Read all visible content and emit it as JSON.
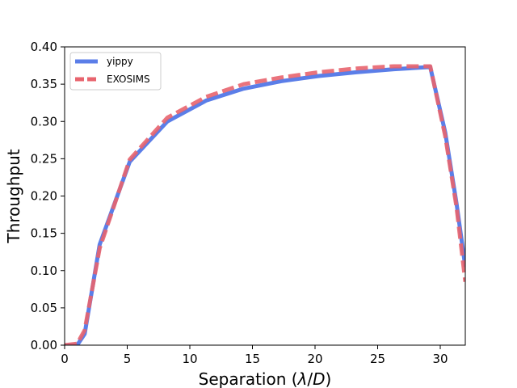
{
  "chart_data": {
    "type": "line",
    "title": "",
    "xlabel": "Separation (λ/D)",
    "xlabel_parts": {
      "prefix": "Separation (",
      "lambda": "λ",
      "slash": "/",
      "d": "D",
      "suffix": ")"
    },
    "ylabel": "Throughput",
    "xlim": [
      0,
      32
    ],
    "ylim": [
      0,
      0.4
    ],
    "xticks": [
      0,
      5,
      10,
      15,
      20,
      25,
      30
    ],
    "xtick_labels": [
      "0",
      "5",
      "10",
      "15",
      "20",
      "25",
      "30"
    ],
    "yticks": [
      0,
      0.05,
      0.1,
      0.15,
      0.2,
      0.25,
      0.3,
      0.35,
      0.4
    ],
    "ytick_labels": [
      "0.00",
      "0.05",
      "0.10",
      "0.15",
      "0.20",
      "0.25",
      "0.30",
      "0.35",
      "0.40"
    ],
    "grid": false,
    "legend_position": "top-left",
    "series": [
      {
        "name": "yippy",
        "color": "#5b7ee8",
        "style": "solid",
        "x": [
          0,
          1.0,
          1.6,
          2.8,
          5.2,
          8.2,
          11.3,
          14.3,
          17.3,
          20.3,
          23.3,
          26.3,
          29.2,
          30.4,
          31.3,
          32
        ],
        "y": [
          0,
          0.0,
          0.015,
          0.135,
          0.246,
          0.3,
          0.328,
          0.344,
          0.354,
          0.361,
          0.366,
          0.37,
          0.373,
          0.285,
          0.19,
          0.105
        ]
      },
      {
        "name": "EXOSIMS",
        "color": "#e8646e",
        "style": "dashed",
        "x": [
          0,
          1.0,
          1.6,
          2.8,
          5.2,
          8.2,
          11.3,
          14.3,
          17.3,
          20.3,
          23.3,
          26.3,
          29.2,
          30.4,
          31.3,
          32
        ],
        "y": [
          0,
          0.002,
          0.02,
          0.13,
          0.249,
          0.305,
          0.333,
          0.35,
          0.359,
          0.366,
          0.371,
          0.374,
          0.374,
          0.28,
          0.185,
          0.085
        ]
      }
    ]
  }
}
